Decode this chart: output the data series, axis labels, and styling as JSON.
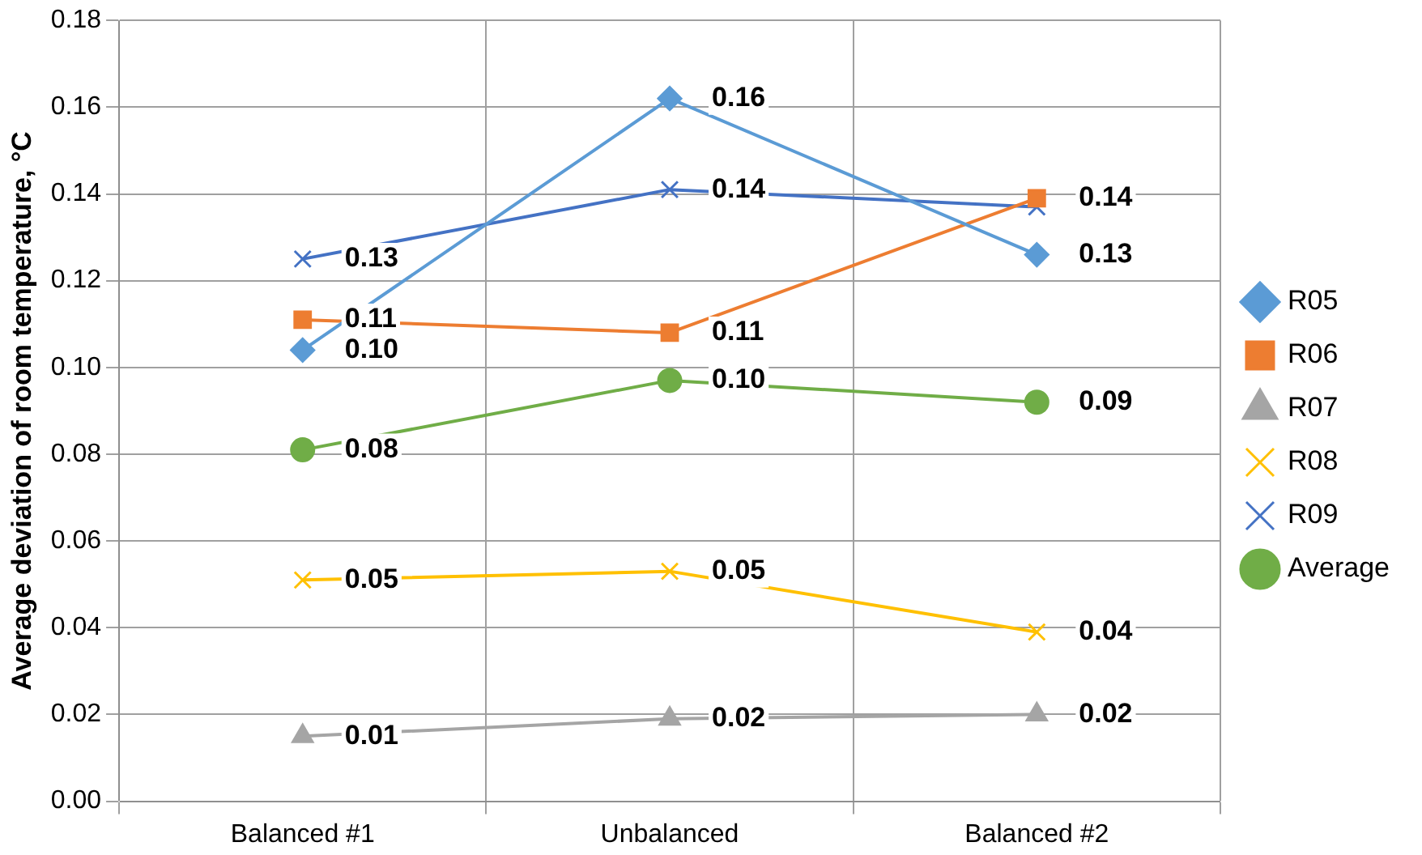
{
  "chart_data": {
    "type": "line",
    "ylabel": "Average deviation of room temperature, °C",
    "categories": [
      "Balanced #1",
      "Unbalanced",
      "Balanced #2"
    ],
    "ylim": [
      0,
      0.18
    ],
    "yticks": [
      {
        "value": 0,
        "label": "0.00"
      },
      {
        "value": 0.02,
        "label": "0.02"
      },
      {
        "value": 0.04,
        "label": "0.04"
      },
      {
        "value": 0.06,
        "label": "0.06"
      },
      {
        "value": 0.08,
        "label": "0.08"
      },
      {
        "value": 0.1,
        "label": "0.10"
      },
      {
        "value": 0.12,
        "label": "0.12"
      },
      {
        "value": 0.14,
        "label": "0.14"
      },
      {
        "value": 0.16,
        "label": "0.16"
      },
      {
        "value": 0.18,
        "label": "0.18"
      }
    ],
    "grid": true,
    "legend": "right",
    "series": [
      {
        "name": "R05",
        "color": "#5b9bd5",
        "marker": "diamond",
        "values": [
          0.104,
          0.162,
          0.126
        ],
        "value_labels": [
          "0.10",
          "0.16",
          "0.13"
        ]
      },
      {
        "name": "R06",
        "color": "#ed7d31",
        "marker": "square",
        "values": [
          0.111,
          0.108,
          0.139
        ],
        "value_labels": [
          "0.11",
          "0.11",
          "0.14"
        ]
      },
      {
        "name": "R07",
        "color": "#a5a5a5",
        "marker": "triangle",
        "values": [
          0.015,
          0.019,
          0.02
        ],
        "value_labels": [
          "0.01",
          "0.02",
          "0.02"
        ]
      },
      {
        "name": "R08",
        "color": "#ffc000",
        "marker": "cross",
        "values": [
          0.051,
          0.053,
          0.039
        ],
        "value_labels": [
          "0.05",
          "0.05",
          "0.04"
        ]
      },
      {
        "name": "R09",
        "color": "#4472c4",
        "marker": "cross",
        "values": [
          0.125,
          0.141,
          0.137
        ],
        "value_labels": [
          "0.13",
          "0.14",
          null
        ]
      },
      {
        "name": "Average",
        "color": "#70ad47",
        "marker": "circle",
        "values": [
          0.081,
          0.097,
          0.092
        ],
        "value_labels": [
          "0.08",
          "0.10",
          "0.09"
        ]
      }
    ]
  }
}
